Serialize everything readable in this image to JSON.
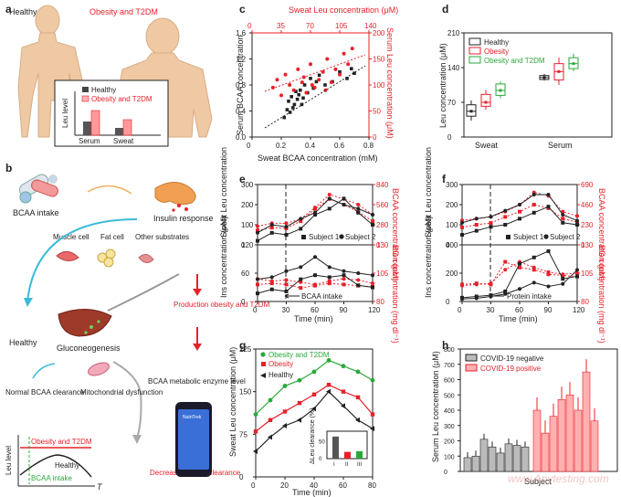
{
  "panel_labels": {
    "a": "a",
    "b": "b",
    "c": "c",
    "d": "d",
    "e": "e",
    "f": "f",
    "g": "g",
    "h": "h"
  },
  "panel_a": {
    "healthy": "Healthy",
    "obese": "Obesity and T2DM",
    "legend_healthy": "Healthy",
    "legend_obese": "Obesity and T2DM",
    "ylabel": "Leu level",
    "x1": "Serum",
    "x2": "Sweat"
  },
  "panel_b": {
    "bcaa_intake": "BCAA intake",
    "insulin": "Insulin response",
    "muscle": "Muscle cell",
    "fat": "Fat cell",
    "other": "Other substrates",
    "production": "Production obesity and T2DM",
    "healthy": "Healthy",
    "gluco": "Gluconeogenesis",
    "normal": "Normal BCAA clearance",
    "mito": "Mitochondrial dysfunction",
    "enzyme": "BCAA metabolic enzyme level",
    "decreased": "Decreased BCAA clearance",
    "ylabel": "Leu level",
    "xlabel": "T",
    "curve_obese": "Obesity and T2DM",
    "curve_healthy": "Healthy",
    "curve_intake": "BCAA intake",
    "phone": "NutriTrek"
  },
  "panel_c": {
    "top_title": "Sweat Leu concentration (μM)",
    "top_ticks": [
      "0",
      "35",
      "70",
      "105",
      "140"
    ],
    "left_ticks": [
      "0.0",
      "0.4",
      "0.8",
      "1.2",
      "1.6"
    ],
    "right_ticks": [
      "0",
      "50",
      "100",
      "150",
      "200"
    ],
    "bottom_ticks": [
      "0",
      "0.2",
      "0.4",
      "0.6",
      "0.8"
    ],
    "ylabel_left": "Serum BCAA concentration",
    "ylabel_right": "Serum Leu concentration (μM)",
    "xlabel": "Sweat BCAA concentration (mM)"
  },
  "panel_d": {
    "ylabel": "Leu concentration (μM)",
    "yticks": [
      "0",
      "70",
      "140",
      "210"
    ],
    "x1": "Sweat",
    "x2": "Serum",
    "leg1": "Healthy",
    "leg2": "Obesity",
    "leg3": "Obesity and T2DM"
  },
  "panel_e": {
    "ylabel_top": "Sweat Leu concentration",
    "ylabel_top_right": "BCAA concentration (μM)",
    "ylabel_bot": "Ins concentration (pM)",
    "ylabel_bot_right": "BG concentration (mg dl⁻¹)",
    "top_left_ticks": [
      "0",
      "100",
      "200",
      "300"
    ],
    "top_right_ticks": [
      "0",
      "280",
      "560",
      "840"
    ],
    "bot_left_ticks": [
      "0",
      "60",
      "120"
    ],
    "bot_right_ticks": [
      "80",
      "105",
      "130"
    ],
    "xticks": [
      "0",
      "30",
      "60",
      "90",
      "120"
    ],
    "xlabel": "Time (min)",
    "s1": "Subject 1",
    "s2": "Subject 2",
    "intake": "BCAA intake"
  },
  "panel_f": {
    "ylabel_top": "Sweat Leu concentration",
    "ylabel_top_right": "BCAA concentration (μM)",
    "ylabel_bot": "Ins concentration (pM)",
    "ylabel_bot_right": "BG concentration (mg dl⁻¹)",
    "top_left_ticks": [
      "0",
      "100",
      "200",
      "300"
    ],
    "top_right_ticks": [
      "0",
      "230",
      "460",
      "690"
    ],
    "bot_left_ticks": [
      "0",
      "200",
      "400"
    ],
    "bot_right_ticks": [
      "80",
      "105",
      "130"
    ],
    "xticks": [
      "0",
      "30",
      "60",
      "90",
      "120"
    ],
    "xlabel": "Time (min)",
    "s1": "Subject 1",
    "s2": "Subject 2",
    "intake": "Protein intake"
  },
  "panel_g": {
    "ylabel": "Sweat Leu concentration (μM)",
    "yticks": [
      "0",
      "75",
      "150",
      "225"
    ],
    "xticks": [
      "0",
      "20",
      "40",
      "60",
      "80"
    ],
    "xlabel": "Time (min)",
    "leg1": "Obesity and T2DM",
    "leg2": "Obesity",
    "leg3": "Healthy",
    "inset_ylabel": "ΔLeu clearance (%)",
    "inset_yticks": [
      "0",
      "50"
    ],
    "inset_xticks": [
      "I",
      "II",
      "III"
    ]
  },
  "panel_h": {
    "ylabel": "Serum Leu concentration (μM)",
    "yticks": [
      "0",
      "100",
      "200",
      "300",
      "400",
      "500",
      "600",
      "700",
      "800"
    ],
    "xlabel": "Subject",
    "leg1": "COVID-19 negative",
    "leg2": "COVID-19 positive"
  },
  "watermark": "www.Anytesting.com",
  "colors": {
    "red": "#e8202a",
    "green": "#2aa83a",
    "skin": "#efc9a3",
    "black": "#222222"
  },
  "chart_data": [
    {
      "panel": "c",
      "type": "scatter",
      "title": "",
      "xlabel": "Sweat BCAA concentration (mM)",
      "ylabel": "Serum BCAA concentration",
      "xlim": [
        0,
        0.8
      ],
      "ylim": [
        0,
        1.6
      ],
      "series": [
        {
          "name": "Serum BCAA vs sweat BCAA",
          "x": [
            0.22,
            0.24,
            0.25,
            0.26,
            0.27,
            0.28,
            0.29,
            0.3,
            0.31,
            0.32,
            0.33,
            0.34,
            0.35,
            0.36,
            0.38,
            0.4,
            0.42,
            0.44,
            0.46,
            0.5,
            0.55,
            0.6,
            0.65,
            0.68,
            0.7
          ],
          "y": [
            0.3,
            0.42,
            0.55,
            0.38,
            0.62,
            0.45,
            0.5,
            0.7,
            0.58,
            0.65,
            0.72,
            0.5,
            0.6,
            0.8,
            0.68,
            0.9,
            0.75,
            0.85,
            0.95,
            0.8,
            0.85,
            1.0,
            0.9,
            1.05,
            0.98
          ]
        },
        {
          "name": "Serum Leu vs sweat Leu",
          "x": [
            25,
            30,
            35,
            40,
            45,
            50,
            55,
            60,
            62,
            65,
            70,
            72,
            75,
            80,
            85,
            88,
            90,
            95,
            100,
            105,
            110,
            115,
            120
          ],
          "y": [
            95,
            110,
            80,
            120,
            100,
            90,
            130,
            105,
            115,
            85,
            140,
            100,
            95,
            110,
            125,
            90,
            150,
            105,
            130,
            120,
            160,
            140,
            170
          ]
        }
      ]
    },
    {
      "panel": "d",
      "type": "box",
      "ylabel": "Leu concentration (μM)",
      "ylim": [
        0,
        210
      ],
      "categories": [
        "Sweat",
        "Serum"
      ],
      "series": [
        {
          "name": "Healthy",
          "median": [
            52,
            120
          ],
          "q1": [
            42,
            116
          ],
          "q3": [
            65,
            124
          ],
          "min": [
            33,
            114
          ],
          "max": [
            74,
            127
          ]
        },
        {
          "name": "Obesity",
          "median": [
            70,
            132
          ],
          "q1": [
            62,
            115
          ],
          "q3": [
            86,
            148
          ],
          "min": [
            55,
            105
          ],
          "max": [
            95,
            160
          ]
        },
        {
          "name": "Obesity and T2DM",
          "median": [
            94,
            148
          ],
          "q1": [
            84,
            138
          ],
          "q3": [
            107,
            160
          ],
          "min": [
            78,
            133
          ],
          "max": [
            112,
            168
          ]
        }
      ]
    },
    {
      "panel": "e",
      "type": "line",
      "xlabel": "Time (min)",
      "ylabel": "Sweat Leu concentration",
      "x": [
        0,
        15,
        30,
        45,
        60,
        75,
        90,
        105,
        120
      ],
      "series": [
        {
          "name": "Subject 1 sweat Leu",
          "values": [
            20,
            60,
            50,
            80,
            150,
            180,
            230,
            160,
            100
          ]
        },
        {
          "name": "Subject 2 sweat Leu",
          "values": [
            60,
            100,
            90,
            130,
            160,
            230,
            200,
            180,
            150
          ]
        },
        {
          "name": "Subject 1 BCAA",
          "values": [
            200,
            240,
            230,
            330,
            500,
            640,
            560,
            460,
            330
          ]
        },
        {
          "name": "Subject 2 BCAA",
          "values": [
            260,
            300,
            300,
            360,
            520,
            700,
            640,
            560,
            420
          ]
        },
        {
          "name": "Subject 1 insulin",
          "values": [
            20,
            30,
            25,
            55,
            65,
            60,
            65,
            40,
            35
          ]
        },
        {
          "name": "Subject 2 insulin",
          "values": [
            55,
            60,
            75,
            85,
            110,
            85,
            75,
            70,
            65
          ]
        },
        {
          "name": "Subject 1 BG",
          "values": [
            95,
            96,
            95,
            92,
            94,
            96,
            95,
            94,
            93
          ]
        },
        {
          "name": "Subject 2 BG",
          "values": [
            100,
            98,
            99,
            97,
            95,
            98,
            100,
            99,
            96
          ]
        }
      ]
    },
    {
      "panel": "f",
      "type": "line",
      "xlabel": "Time (min)",
      "ylabel": "Sweat Leu concentration",
      "x": [
        0,
        15,
        30,
        45,
        60,
        75,
        90,
        105,
        120
      ],
      "series": [
        {
          "name": "Subject 1 sweat Leu",
          "values": [
            50,
            70,
            90,
            100,
            130,
            160,
            190,
            110,
            100
          ]
        },
        {
          "name": "Subject 2 sweat Leu",
          "values": [
            110,
            130,
            140,
            170,
            200,
            250,
            250,
            150,
            120
          ]
        },
        {
          "name": "Subject 1 BCAA",
          "values": [
            200,
            230,
            250,
            320,
            380,
            460,
            420,
            300,
            260
          ]
        },
        {
          "name": "Subject 2 BCAA",
          "values": [
            280,
            300,
            320,
            380,
            460,
            600,
            560,
            380,
            330
          ]
        },
        {
          "name": "Subject 1 insulin",
          "values": [
            30,
            40,
            50,
            80,
            300,
            350,
            400,
            180,
            200
          ]
        },
        {
          "name": "Subject 2 insulin",
          "values": [
            20,
            25,
            40,
            60,
            100,
            150,
            120,
            140,
            250
          ]
        },
        {
          "name": "Subject 1 BG",
          "values": [
            95,
            96,
            95,
            115,
            110,
            108,
            104,
            103,
            102
          ]
        },
        {
          "name": "Subject 2 BG",
          "values": [
            94,
            95,
            96,
            108,
            115,
            110,
            106,
            104,
            105
          ]
        }
      ]
    },
    {
      "panel": "g",
      "type": "line",
      "xlabel": "Time (min)",
      "ylabel": "Sweat Leu concentration (μM)",
      "ylim": [
        0,
        225
      ],
      "x": [
        0,
        10,
        20,
        30,
        40,
        50,
        60,
        70,
        80
      ],
      "series": [
        {
          "name": "Obesity and T2DM",
          "values": [
            110,
            135,
            160,
            170,
            185,
            205,
            195,
            185,
            170
          ]
        },
        {
          "name": "Obesity",
          "values": [
            80,
            100,
            115,
            130,
            145,
            162,
            150,
            140,
            110
          ]
        },
        {
          "name": "Healthy",
          "values": [
            45,
            70,
            90,
            100,
            120,
            150,
            125,
            100,
            85
          ]
        }
      ],
      "inset": {
        "categories": [
          "I",
          "II",
          "III"
        ],
        "values": [
          65,
          20,
          22
        ],
        "ylabel": "ΔLeu clearance (%)"
      }
    },
    {
      "panel": "h",
      "type": "bar",
      "xlabel": "Subject",
      "ylabel": "Serum Leu concentration (μM)",
      "ylim": [
        0,
        800
      ],
      "series": [
        {
          "name": "COVID-19 negative",
          "values": [
            90,
            100,
            210,
            160,
            120,
            180,
            170,
            160
          ]
        },
        {
          "name": "COVID-19 positive",
          "values": [
            400,
            250,
            360,
            470,
            500,
            400,
            650,
            330
          ]
        }
      ]
    }
  ]
}
